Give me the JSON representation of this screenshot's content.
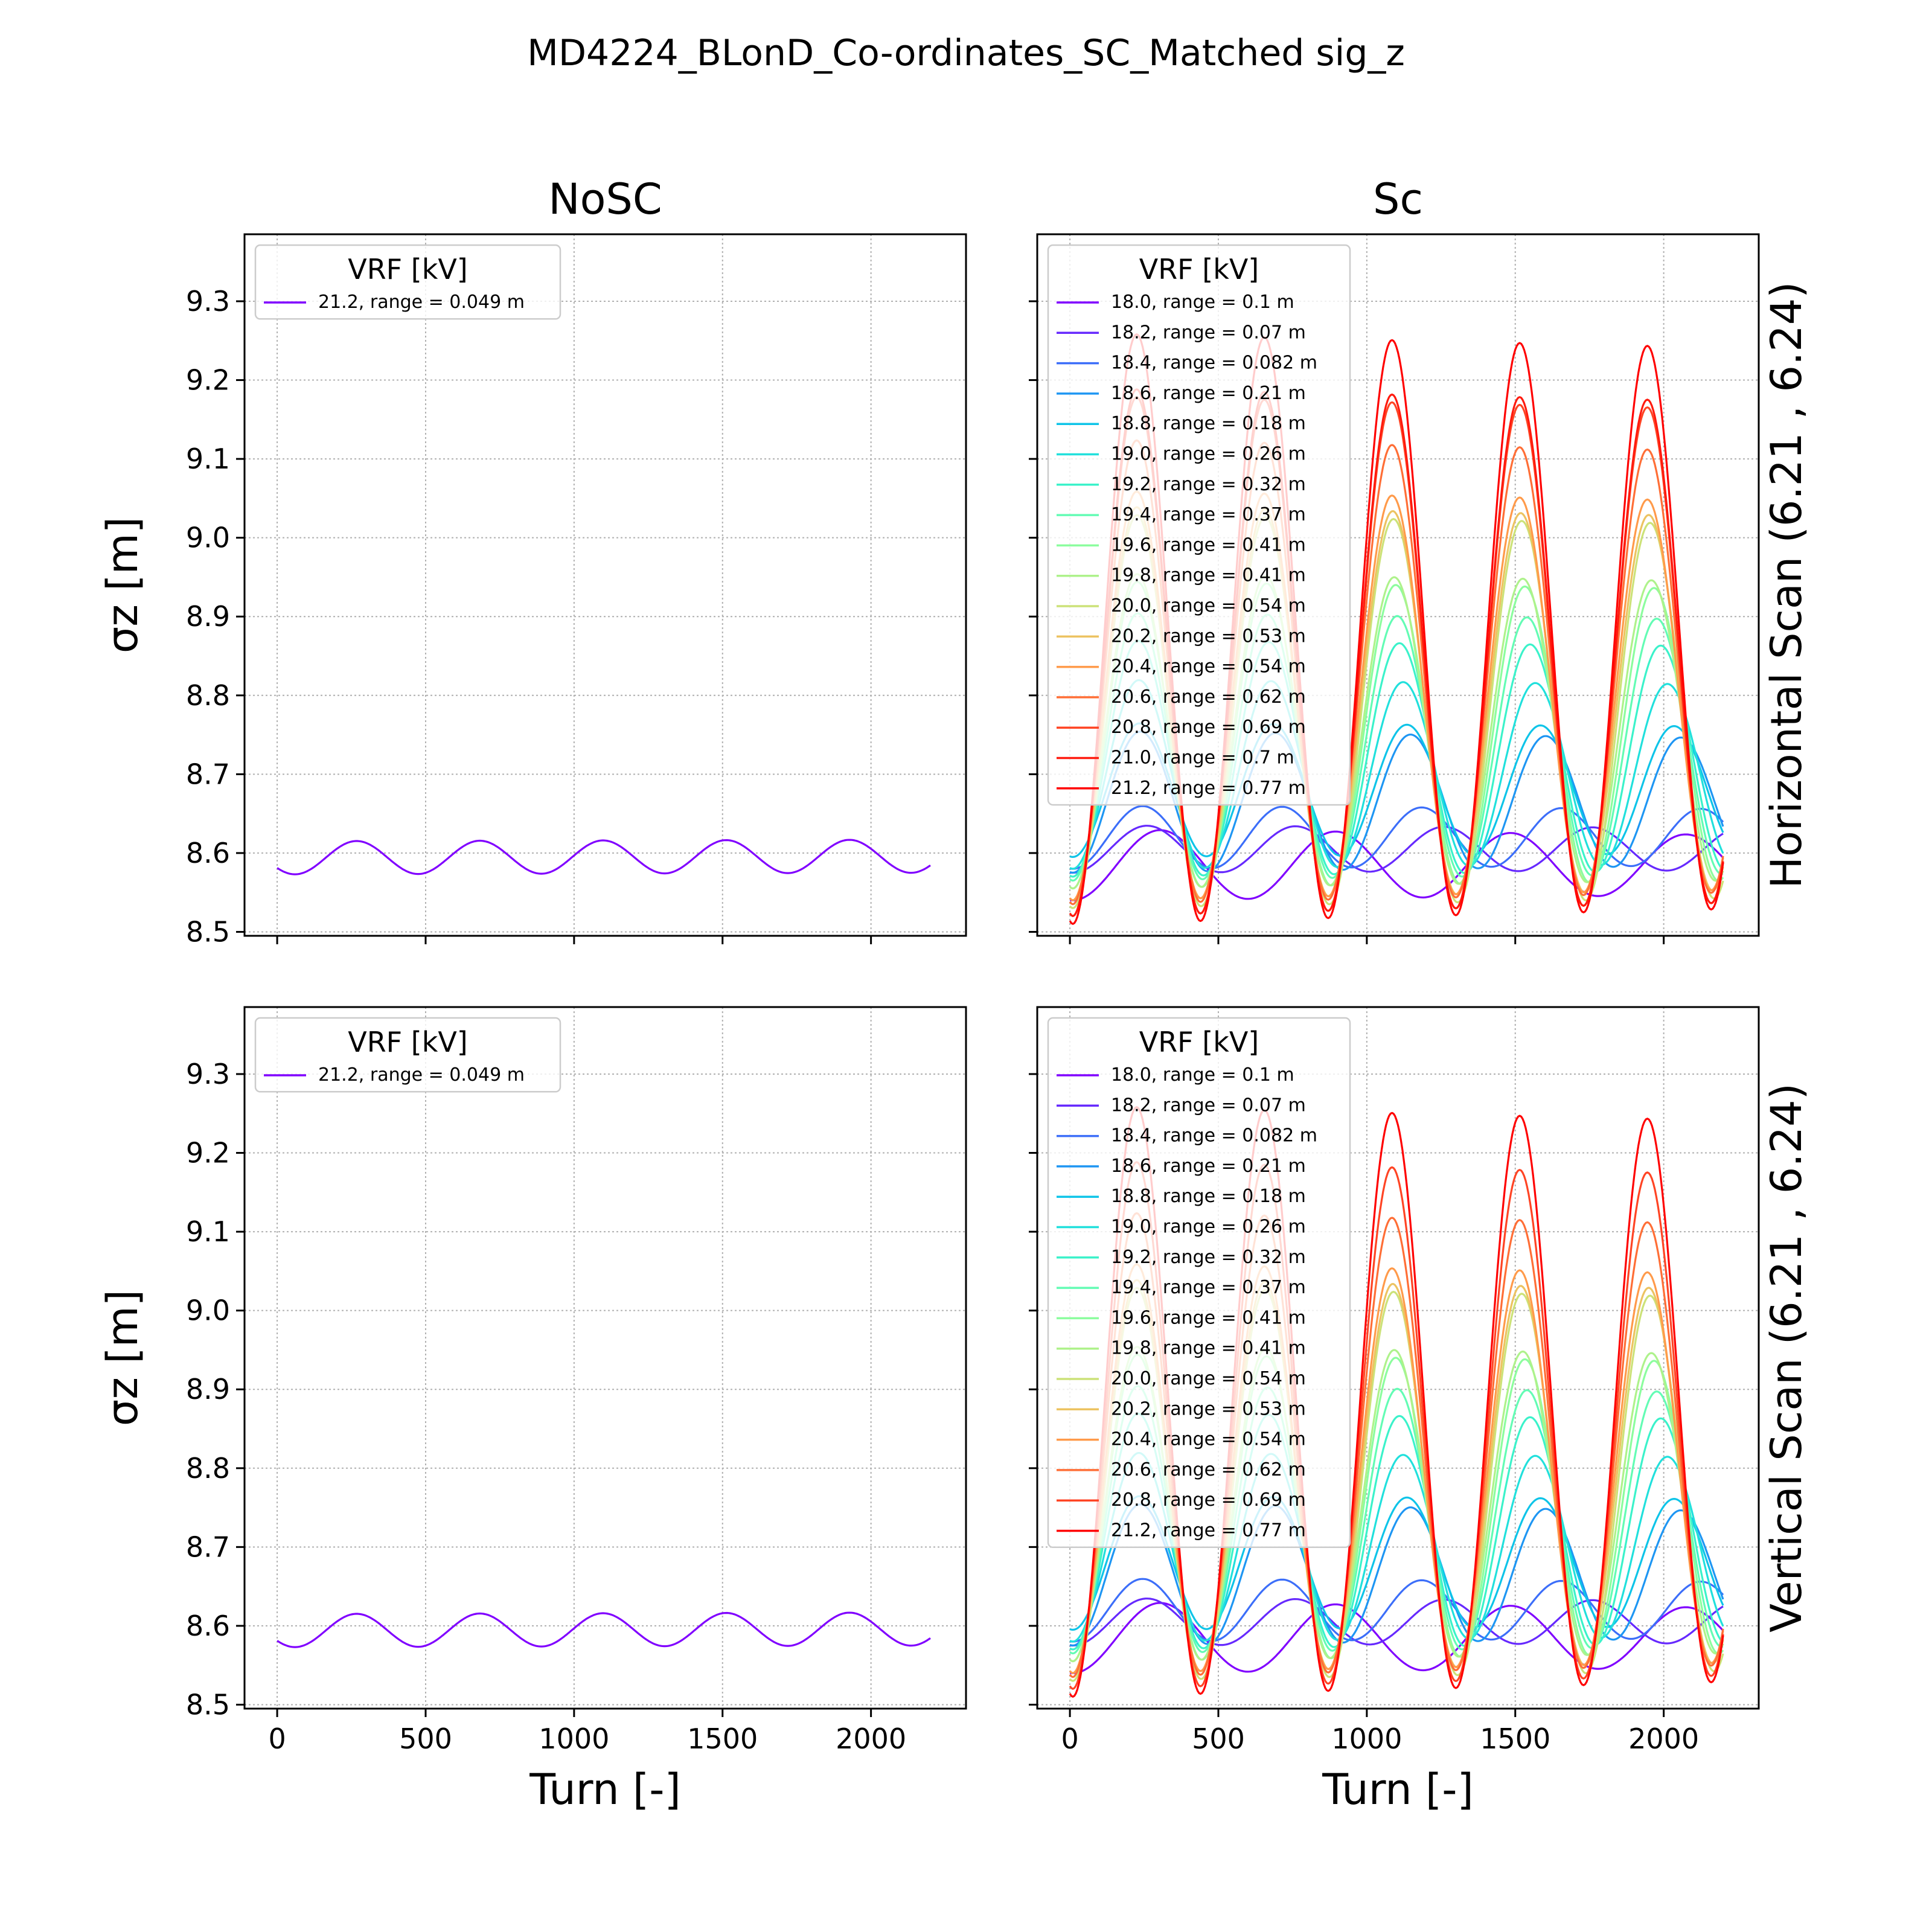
{
  "figure": {
    "suptitle": "MD4224_BLonD_Co-ordinates_SC_Matched sig_z"
  },
  "colors": {
    "nosc": "#8000ff",
    "sc": [
      "#8000ff",
      "#6629fe",
      "#3c6ef9",
      "#1e96f3",
      "#0ec4e8",
      "#21e0dc",
      "#3bf2ca",
      "#63fcb4",
      "#8cfd9e",
      "#aef28b",
      "#cce278",
      "#ecc361",
      "#ff9a4a",
      "#ff6e36",
      "#ff4424",
      "#ff1a0e",
      "#ff0000"
    ]
  },
  "chart_data": [
    {
      "id": "top-left",
      "type": "line",
      "title": "NoSC",
      "row_label": "",
      "xlabel": "",
      "ylabel": "σz [m]",
      "xlim": [
        -110,
        2320
      ],
      "ylim": [
        8.495,
        9.385
      ],
      "xticks": [
        0,
        500,
        1000,
        1500,
        2000
      ],
      "yticks": [
        8.5,
        8.6,
        8.7,
        8.8,
        8.9,
        9.0,
        9.1,
        9.2,
        9.3
      ],
      "grid": true,
      "legend": {
        "title": "VRF [kV]",
        "location": "upper-left"
      },
      "series": [
        {
          "name": "21.2, range = 0.049 m",
          "base": 8.594,
          "osc_amp": 0.021,
          "slow": 0.002,
          "period": 415,
          "phase": 0
        }
      ]
    },
    {
      "id": "top-right",
      "type": "line",
      "title": "Sc",
      "row_label": "Horizontal Scan (6.21 , 6.24)",
      "xlabel": "",
      "ylabel": "",
      "xlim": [
        -110,
        2320
      ],
      "ylim": [
        8.495,
        9.385
      ],
      "xticks": [
        0,
        500,
        1000,
        1500,
        2000
      ],
      "yticks": [
        8.5,
        8.6,
        8.7,
        8.8,
        8.9,
        9.0,
        9.1,
        9.2,
        9.3
      ],
      "grid": true,
      "legend": {
        "title": "VRF [kV]",
        "location": "upper-left"
      },
      "series": [
        {
          "name": "18.0, range = 0.1 m",
          "mid": 8.585,
          "amp": 0.045,
          "period": 590,
          "phase": 0.0,
          "decay": 0.15
        },
        {
          "name": "18.2, range = 0.07 m",
          "mid": 8.605,
          "amp": 0.03,
          "period": 500,
          "phase": 0.0,
          "decay": 0.1
        },
        {
          "name": "18.4, range = 0.082 m",
          "mid": 8.62,
          "amp": 0.04,
          "period": 470,
          "phase": 0.0,
          "decay": 0.1
        },
        {
          "name": "18.6, range = 0.21 m",
          "mid": 8.665,
          "amp": 0.09,
          "period": 455,
          "phase": 0.0,
          "decay": 0.1
        },
        {
          "name": "18.8, range = 0.18 m",
          "mid": 8.68,
          "amp": 0.085,
          "period": 450,
          "phase": 0.0,
          "decay": 0.05
        },
        {
          "name": "19.0, range = 0.26 m",
          "mid": 8.7,
          "amp": 0.12,
          "period": 445,
          "phase": 0.0,
          "decay": 0.05
        },
        {
          "name": "19.2, range = 0.32 m",
          "mid": 8.72,
          "amp": 0.15,
          "period": 440,
          "phase": 0.0,
          "decay": 0.05
        },
        {
          "name": "19.4, range = 0.37 m",
          "mid": 8.735,
          "amp": 0.17,
          "period": 437,
          "phase": 0.0,
          "decay": 0.05
        },
        {
          "name": "19.6, range = 0.41 m",
          "mid": 8.75,
          "amp": 0.195,
          "period": 435,
          "phase": 0.0,
          "decay": 0.05
        },
        {
          "name": "19.8, range = 0.41 m",
          "mid": 8.755,
          "amp": 0.2,
          "period": 433,
          "phase": 0.0,
          "decay": 0.05
        },
        {
          "name": "20.0, range = 0.54 m",
          "mid": 8.78,
          "amp": 0.25,
          "period": 432,
          "phase": 0.0,
          "decay": 0.05
        },
        {
          "name": "20.2, range = 0.53 m",
          "mid": 8.79,
          "amp": 0.25,
          "period": 431,
          "phase": 0.0,
          "decay": 0.05
        },
        {
          "name": "20.4, range = 0.54 m",
          "mid": 8.8,
          "amp": 0.26,
          "period": 430,
          "phase": 0.0,
          "decay": 0.05
        },
        {
          "name": "20.6, range = 0.62 m",
          "mid": 8.83,
          "amp": 0.295,
          "period": 430,
          "phase": 0.0,
          "decay": 0.05
        },
        {
          "name": "20.8, range = 0.69 m",
          "mid": 8.85,
          "amp": 0.33,
          "period": 430,
          "phase": 0.0,
          "decay": 0.05
        },
        {
          "name": "21.0, range = 0.7 m",
          "mid": 8.855,
          "amp": 0.335,
          "period": 430,
          "phase": 0.0,
          "decay": 0.05
        },
        {
          "name": "21.2, range = 0.77 m",
          "mid": 8.885,
          "amp": 0.375,
          "period": 430,
          "phase": 0.0,
          "decay": 0.05
        }
      ]
    },
    {
      "id": "bottom-left",
      "type": "line",
      "title": "",
      "row_label": "",
      "xlabel": "Turn [-]",
      "ylabel": "σz [m]",
      "xlim": [
        -110,
        2320
      ],
      "ylim": [
        8.495,
        9.385
      ],
      "xticks": [
        0,
        500,
        1000,
        1500,
        2000
      ],
      "yticks": [
        8.5,
        8.6,
        8.7,
        8.8,
        8.9,
        9.0,
        9.1,
        9.2,
        9.3
      ],
      "grid": true,
      "legend": {
        "title": "VRF [kV]",
        "location": "upper-left"
      },
      "series": [
        {
          "name": "21.2, range = 0.049 m",
          "base": 8.594,
          "osc_amp": 0.021,
          "slow": 0.002,
          "period": 415,
          "phase": 0
        }
      ]
    },
    {
      "id": "bottom-right",
      "type": "line",
      "title": "",
      "row_label": "Vertical Scan (6.21 , 6.24)",
      "xlabel": "Turn [-]",
      "ylabel": "",
      "xlim": [
        -110,
        2320
      ],
      "ylim": [
        8.495,
        9.385
      ],
      "xticks": [
        0,
        500,
        1000,
        1500,
        2000
      ],
      "yticks": [
        8.5,
        8.6,
        8.7,
        8.8,
        8.9,
        9.0,
        9.1,
        9.2,
        9.3
      ],
      "grid": true,
      "legend": {
        "title": "VRF [kV]",
        "location": "upper-left"
      },
      "series": [
        {
          "name": "18.0, range = 0.1 m",
          "mid": 8.585,
          "amp": 0.045,
          "period": 590,
          "phase": 0.0,
          "decay": 0.15
        },
        {
          "name": "18.2, range = 0.07 m",
          "mid": 8.605,
          "amp": 0.03,
          "period": 500,
          "phase": 0.0,
          "decay": 0.1
        },
        {
          "name": "18.4, range = 0.082 m",
          "mid": 8.62,
          "amp": 0.04,
          "period": 470,
          "phase": 0.0,
          "decay": 0.1
        },
        {
          "name": "18.6, range = 0.21 m",
          "mid": 8.665,
          "amp": 0.09,
          "period": 455,
          "phase": 0.0,
          "decay": 0.1
        },
        {
          "name": "18.8, range = 0.18 m",
          "mid": 8.68,
          "amp": 0.085,
          "period": 450,
          "phase": 0.0,
          "decay": 0.05
        },
        {
          "name": "19.0, range = 0.26 m",
          "mid": 8.7,
          "amp": 0.12,
          "period": 445,
          "phase": 0.0,
          "decay": 0.05
        },
        {
          "name": "19.2, range = 0.32 m",
          "mid": 8.72,
          "amp": 0.15,
          "period": 440,
          "phase": 0.0,
          "decay": 0.05
        },
        {
          "name": "19.4, range = 0.37 m",
          "mid": 8.735,
          "amp": 0.17,
          "period": 437,
          "phase": 0.0,
          "decay": 0.05
        },
        {
          "name": "19.6, range = 0.41 m",
          "mid": 8.75,
          "amp": 0.195,
          "period": 435,
          "phase": 0.0,
          "decay": 0.05
        },
        {
          "name": "19.8, range = 0.41 m",
          "mid": 8.755,
          "amp": 0.2,
          "period": 433,
          "phase": 0.0,
          "decay": 0.05
        },
        {
          "name": "20.0, range = 0.54 m",
          "mid": 8.78,
          "amp": 0.25,
          "period": 432,
          "phase": 0.0,
          "decay": 0.05
        },
        {
          "name": "20.2, range = 0.53 m",
          "mid": 8.79,
          "amp": 0.25,
          "period": 431,
          "phase": 0.0,
          "decay": 0.05
        },
        {
          "name": "20.4, range = 0.54 m",
          "mid": 8.8,
          "amp": 0.26,
          "period": 430,
          "phase": 0.0,
          "decay": 0.05
        },
        {
          "name": "20.6, range = 0.62 m",
          "mid": 8.83,
          "amp": 0.295,
          "period": 430,
          "phase": 0.0,
          "decay": 0.05
        },
        {
          "name": "20.8, range = 0.69 m",
          "mid": 8.855,
          "amp": 0.335,
          "period": 430,
          "phase": 0.0,
          "decay": 0.05
        },
        {
          "name": "21.2, range = 0.77 m",
          "mid": 8.885,
          "amp": 0.375,
          "period": 430,
          "phase": 0.0,
          "decay": 0.05
        }
      ]
    }
  ]
}
